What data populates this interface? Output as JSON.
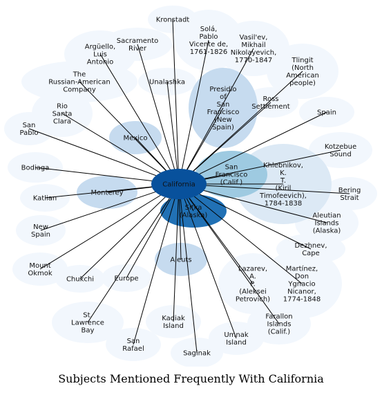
{
  "caption": "Subjects Mentioned Frequently With California",
  "hub": "California",
  "colors": {
    "hub": "#08519c",
    "strong": "#2171b5",
    "medium": "#9ecae1",
    "light": "#c6dbef",
    "pale": "#dce9f5",
    "faint": "#f2f7fd",
    "edge": "#000000"
  },
  "nodes": [
    {
      "id": "kronstadt",
      "lines": [
        "Kronstadt"
      ],
      "tier": "faint"
    },
    {
      "id": "arguello",
      "lines": [
        "Argüello,",
        "Luis",
        "Antonio"
      ],
      "tier": "faint"
    },
    {
      "id": "sacramento-river",
      "lines": [
        "Sacramento",
        "River"
      ],
      "tier": "faint"
    },
    {
      "id": "sola",
      "lines": [
        "Solá,",
        "Pablo",
        "Vicente de,",
        "1761-1826"
      ],
      "tier": "faint"
    },
    {
      "id": "vasilev",
      "lines": [
        "Vasil'ev,",
        "Mikhail",
        "Nikolayevich,",
        "1770-1847"
      ],
      "tier": "faint"
    },
    {
      "id": "tlingit",
      "lines": [
        "Tlingit",
        "(North",
        "American",
        "people)"
      ],
      "tier": "faint"
    },
    {
      "id": "russian-american-company",
      "lines": [
        "The",
        "Russian-American",
        "Company"
      ],
      "tier": "faint"
    },
    {
      "id": "unalashka",
      "lines": [
        "Unalashka"
      ],
      "tier": "faint"
    },
    {
      "id": "presidio",
      "lines": [
        "Presidio",
        "of",
        "San",
        "Francisco",
        "(New",
        "Spain)"
      ],
      "tier": "light"
    },
    {
      "id": "ross-settlement",
      "lines": [
        "Ross",
        "Settlement"
      ],
      "tier": "faint"
    },
    {
      "id": "rio-santa-clara",
      "lines": [
        "Rio",
        "Santa",
        "Clara"
      ],
      "tier": "faint"
    },
    {
      "id": "spain",
      "lines": [
        "Spain"
      ],
      "tier": "faint"
    },
    {
      "id": "san-pablo",
      "lines": [
        "San",
        "Pablo"
      ],
      "tier": "faint"
    },
    {
      "id": "mexico",
      "lines": [
        "Mexico"
      ],
      "tier": "light"
    },
    {
      "id": "kotzebue-sound",
      "lines": [
        "Kotzebue",
        "Sound"
      ],
      "tier": "faint"
    },
    {
      "id": "khlebnikov",
      "lines": [
        "Khlebnikov,",
        "K.",
        "T.",
        "(Kiril",
        "Timofeevich),",
        "1784-1838"
      ],
      "tier": "pale"
    },
    {
      "id": "bodiaga",
      "lines": [
        "Bodiaga"
      ],
      "tier": "faint"
    },
    {
      "id": "san-francisco",
      "lines": [
        "San",
        "Francisco",
        "(Calif.)"
      ],
      "tier": "medium"
    },
    {
      "id": "bering-strait",
      "lines": [
        "Bering",
        "Strait"
      ],
      "tier": "faint"
    },
    {
      "id": "monterey",
      "lines": [
        "Monterey"
      ],
      "tier": "light"
    },
    {
      "id": "katlian",
      "lines": [
        "Katlian"
      ],
      "tier": "faint"
    },
    {
      "id": "sitka",
      "lines": [
        "Sitka",
        "(Alaska)"
      ],
      "tier": "strong"
    },
    {
      "id": "aleutian-islands",
      "lines": [
        "Aleutian",
        "Islands",
        "(Alaska)"
      ],
      "tier": "faint"
    },
    {
      "id": "new-spain",
      "lines": [
        "New",
        "Spain"
      ],
      "tier": "faint"
    },
    {
      "id": "dezhnev",
      "lines": [
        "Dezhnev,",
        "Cape"
      ],
      "tier": "faint"
    },
    {
      "id": "aleuts",
      "lines": [
        "Aleuts"
      ],
      "tier": "light"
    },
    {
      "id": "mount-okmok",
      "lines": [
        "Mount",
        "Okmok"
      ],
      "tier": "faint"
    },
    {
      "id": "chukchi",
      "lines": [
        "Chukchi"
      ],
      "tier": "faint"
    },
    {
      "id": "europe",
      "lines": [
        "Europe"
      ],
      "tier": "faint"
    },
    {
      "id": "lazarev",
      "lines": [
        "Lazarev,",
        "A.",
        "P.",
        "(Aleksei",
        "Petrovich)"
      ],
      "tier": "faint"
    },
    {
      "id": "martinez",
      "lines": [
        "Martínez,",
        "Don",
        "Ygnacio",
        "Nicanor,",
        "1774-1848"
      ],
      "tier": "faint"
    },
    {
      "id": "st-lawrence-bay",
      "lines": [
        "St.",
        "Lawrence",
        "Bay"
      ],
      "tier": "faint"
    },
    {
      "id": "kadiak-island",
      "lines": [
        "Kadiak",
        "Island"
      ],
      "tier": "faint"
    },
    {
      "id": "farallon-islands",
      "lines": [
        "Farallon",
        "Islands",
        "(Calif.)"
      ],
      "tier": "faint"
    },
    {
      "id": "umnak-island",
      "lines": [
        "Umnak",
        "Island"
      ],
      "tier": "faint"
    },
    {
      "id": "san-rafael",
      "lines": [
        "San",
        "Rafael"
      ],
      "tier": "faint"
    },
    {
      "id": "saginak",
      "lines": [
        "Saginak"
      ],
      "tier": "faint"
    }
  ]
}
